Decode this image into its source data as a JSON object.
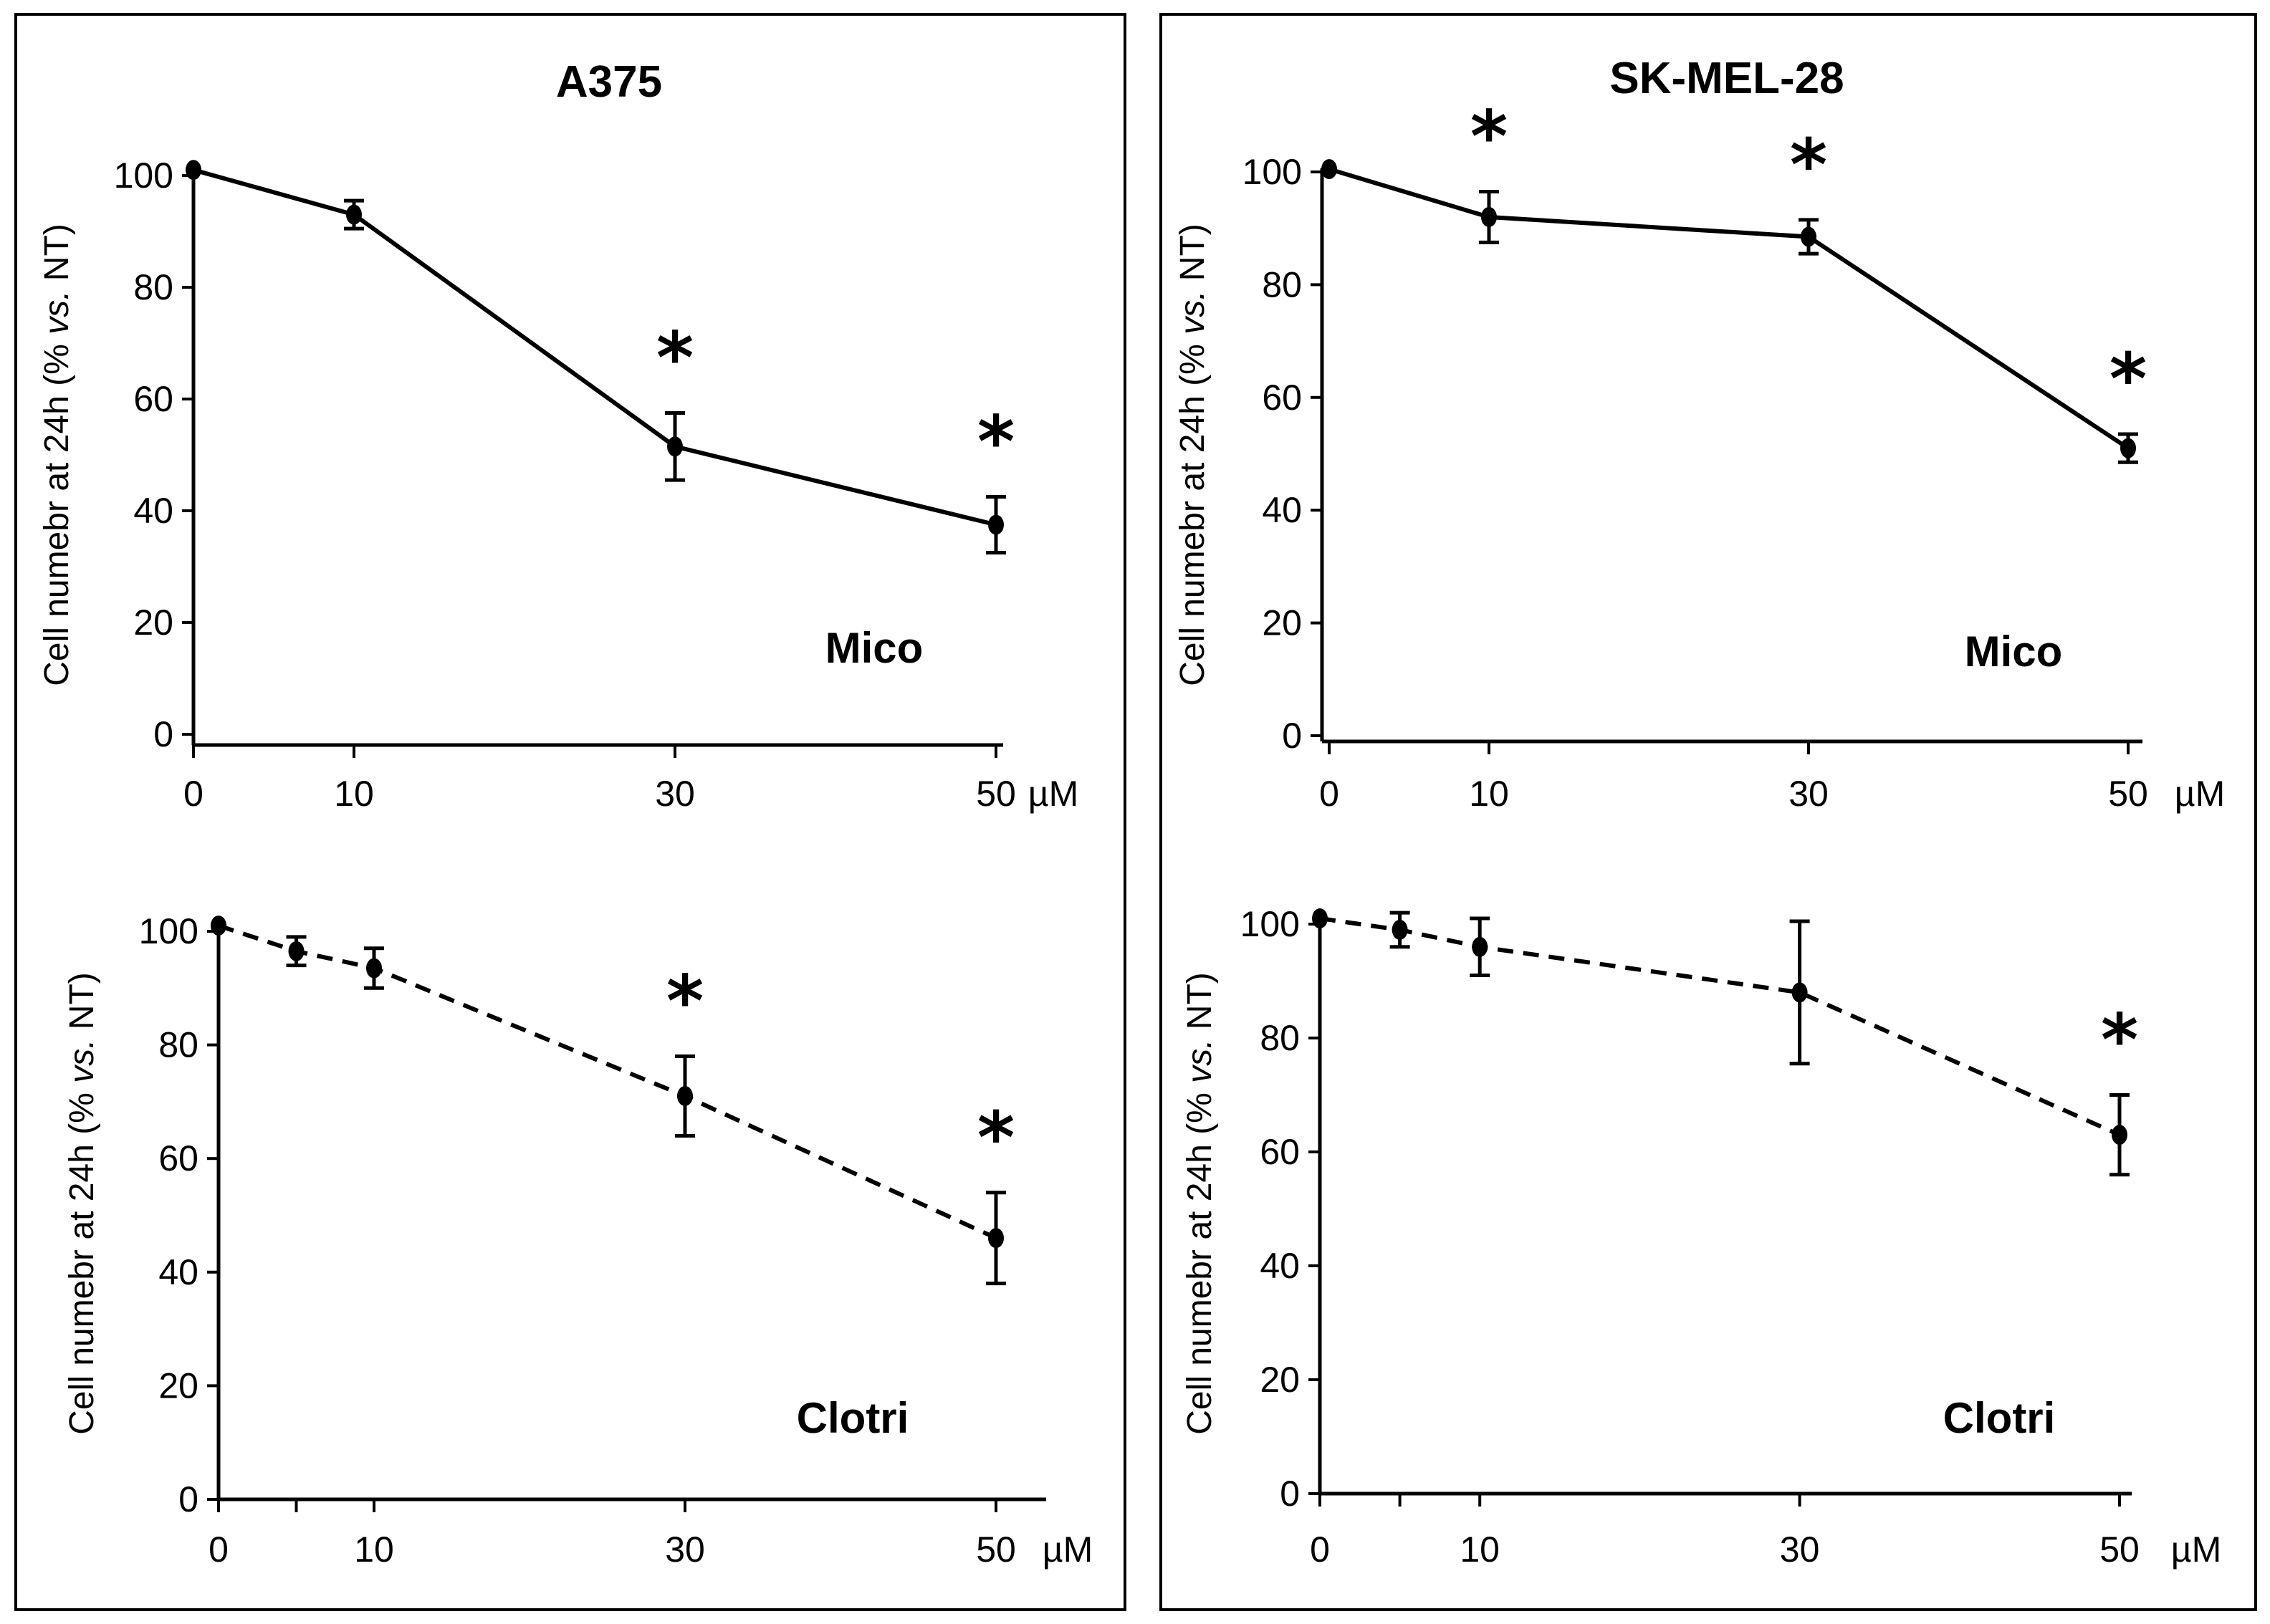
{
  "figure": {
    "ylabel_prefix": "Cell numebr at 24h (% ",
    "ylabel_italic": "vs.",
    "ylabel_suffix": " NT)",
    "unit_label": "µM"
  },
  "chart_data": [
    {
      "type": "line",
      "panel": "A375",
      "title": "A375",
      "treatment": "Mico",
      "line_style": "solid",
      "xlabel": "µM",
      "ylabel": "Cell numebr at 24h (% vs. NT)",
      "x_ticks": [
        "0",
        "10",
        "30",
        "50"
      ],
      "y_ticks": [
        "0",
        "20",
        "40",
        "60",
        "80",
        "100"
      ],
      "xlim": [
        0,
        50
      ],
      "ylim": [
        0,
        100
      ],
      "series": [
        {
          "name": "Mico",
          "x": [
            0,
            10,
            30,
            50
          ],
          "y": [
            101,
            93,
            51.5,
            37.5
          ],
          "err": [
            0.5,
            2.5,
            6,
            5
          ],
          "significant": [
            false,
            false,
            true,
            true
          ]
        }
      ]
    },
    {
      "type": "line",
      "panel": "SK-MEL-28",
      "title": "SK-MEL-28",
      "treatment": "Mico",
      "line_style": "solid",
      "xlabel": "µM",
      "ylabel": "Cell numebr at 24h (% vs. NT)",
      "x_ticks": [
        "0",
        "10",
        "30",
        "50"
      ],
      "y_ticks": [
        "0",
        "20",
        "40",
        "60",
        "80",
        "100"
      ],
      "xlim": [
        0,
        50
      ],
      "ylim": [
        0,
        100
      ],
      "series": [
        {
          "name": "Mico",
          "x": [
            0,
            10,
            30,
            50
          ],
          "y": [
            100.5,
            92,
            88.5,
            51
          ],
          "err": [
            0.5,
            4.5,
            3,
            2.5
          ],
          "significant": [
            false,
            true,
            true,
            true
          ]
        }
      ]
    },
    {
      "type": "line",
      "panel": "A375",
      "title": "",
      "treatment": "Clotri",
      "line_style": "dashed",
      "xlabel": "µM",
      "ylabel": "Cell numebr at 24h (% vs. NT)",
      "x_ticks": [
        "0",
        "10",
        "30",
        "50"
      ],
      "y_ticks": [
        "0",
        "20",
        "40",
        "60",
        "80",
        "100"
      ],
      "xlim": [
        0,
        50
      ],
      "ylim": [
        0,
        100
      ],
      "series": [
        {
          "name": "Clotri",
          "x": [
            0,
            5,
            10,
            30,
            50
          ],
          "y": [
            101,
            96.5,
            93.5,
            71,
            46
          ],
          "err": [
            0.5,
            2.5,
            3.5,
            7,
            8
          ],
          "significant": [
            false,
            false,
            false,
            true,
            true
          ]
        }
      ]
    },
    {
      "type": "line",
      "panel": "SK-MEL-28",
      "title": "",
      "treatment": "Clotri",
      "line_style": "dashed",
      "xlabel": "µM",
      "ylabel": "Cell numebr at 24h (% vs. NT)",
      "x_ticks": [
        "0",
        "10",
        "30",
        "50"
      ],
      "y_ticks": [
        "0",
        "20",
        "40",
        "60",
        "80",
        "100"
      ],
      "xlim": [
        0,
        50
      ],
      "ylim": [
        0,
        100
      ],
      "series": [
        {
          "name": "Clotri",
          "x": [
            0,
            5,
            10,
            30,
            50
          ],
          "y": [
            101,
            99,
            96,
            88,
            63
          ],
          "err": [
            0.5,
            3,
            5,
            12.5,
            7
          ],
          "significant": [
            false,
            false,
            false,
            false,
            true
          ]
        }
      ]
    }
  ]
}
